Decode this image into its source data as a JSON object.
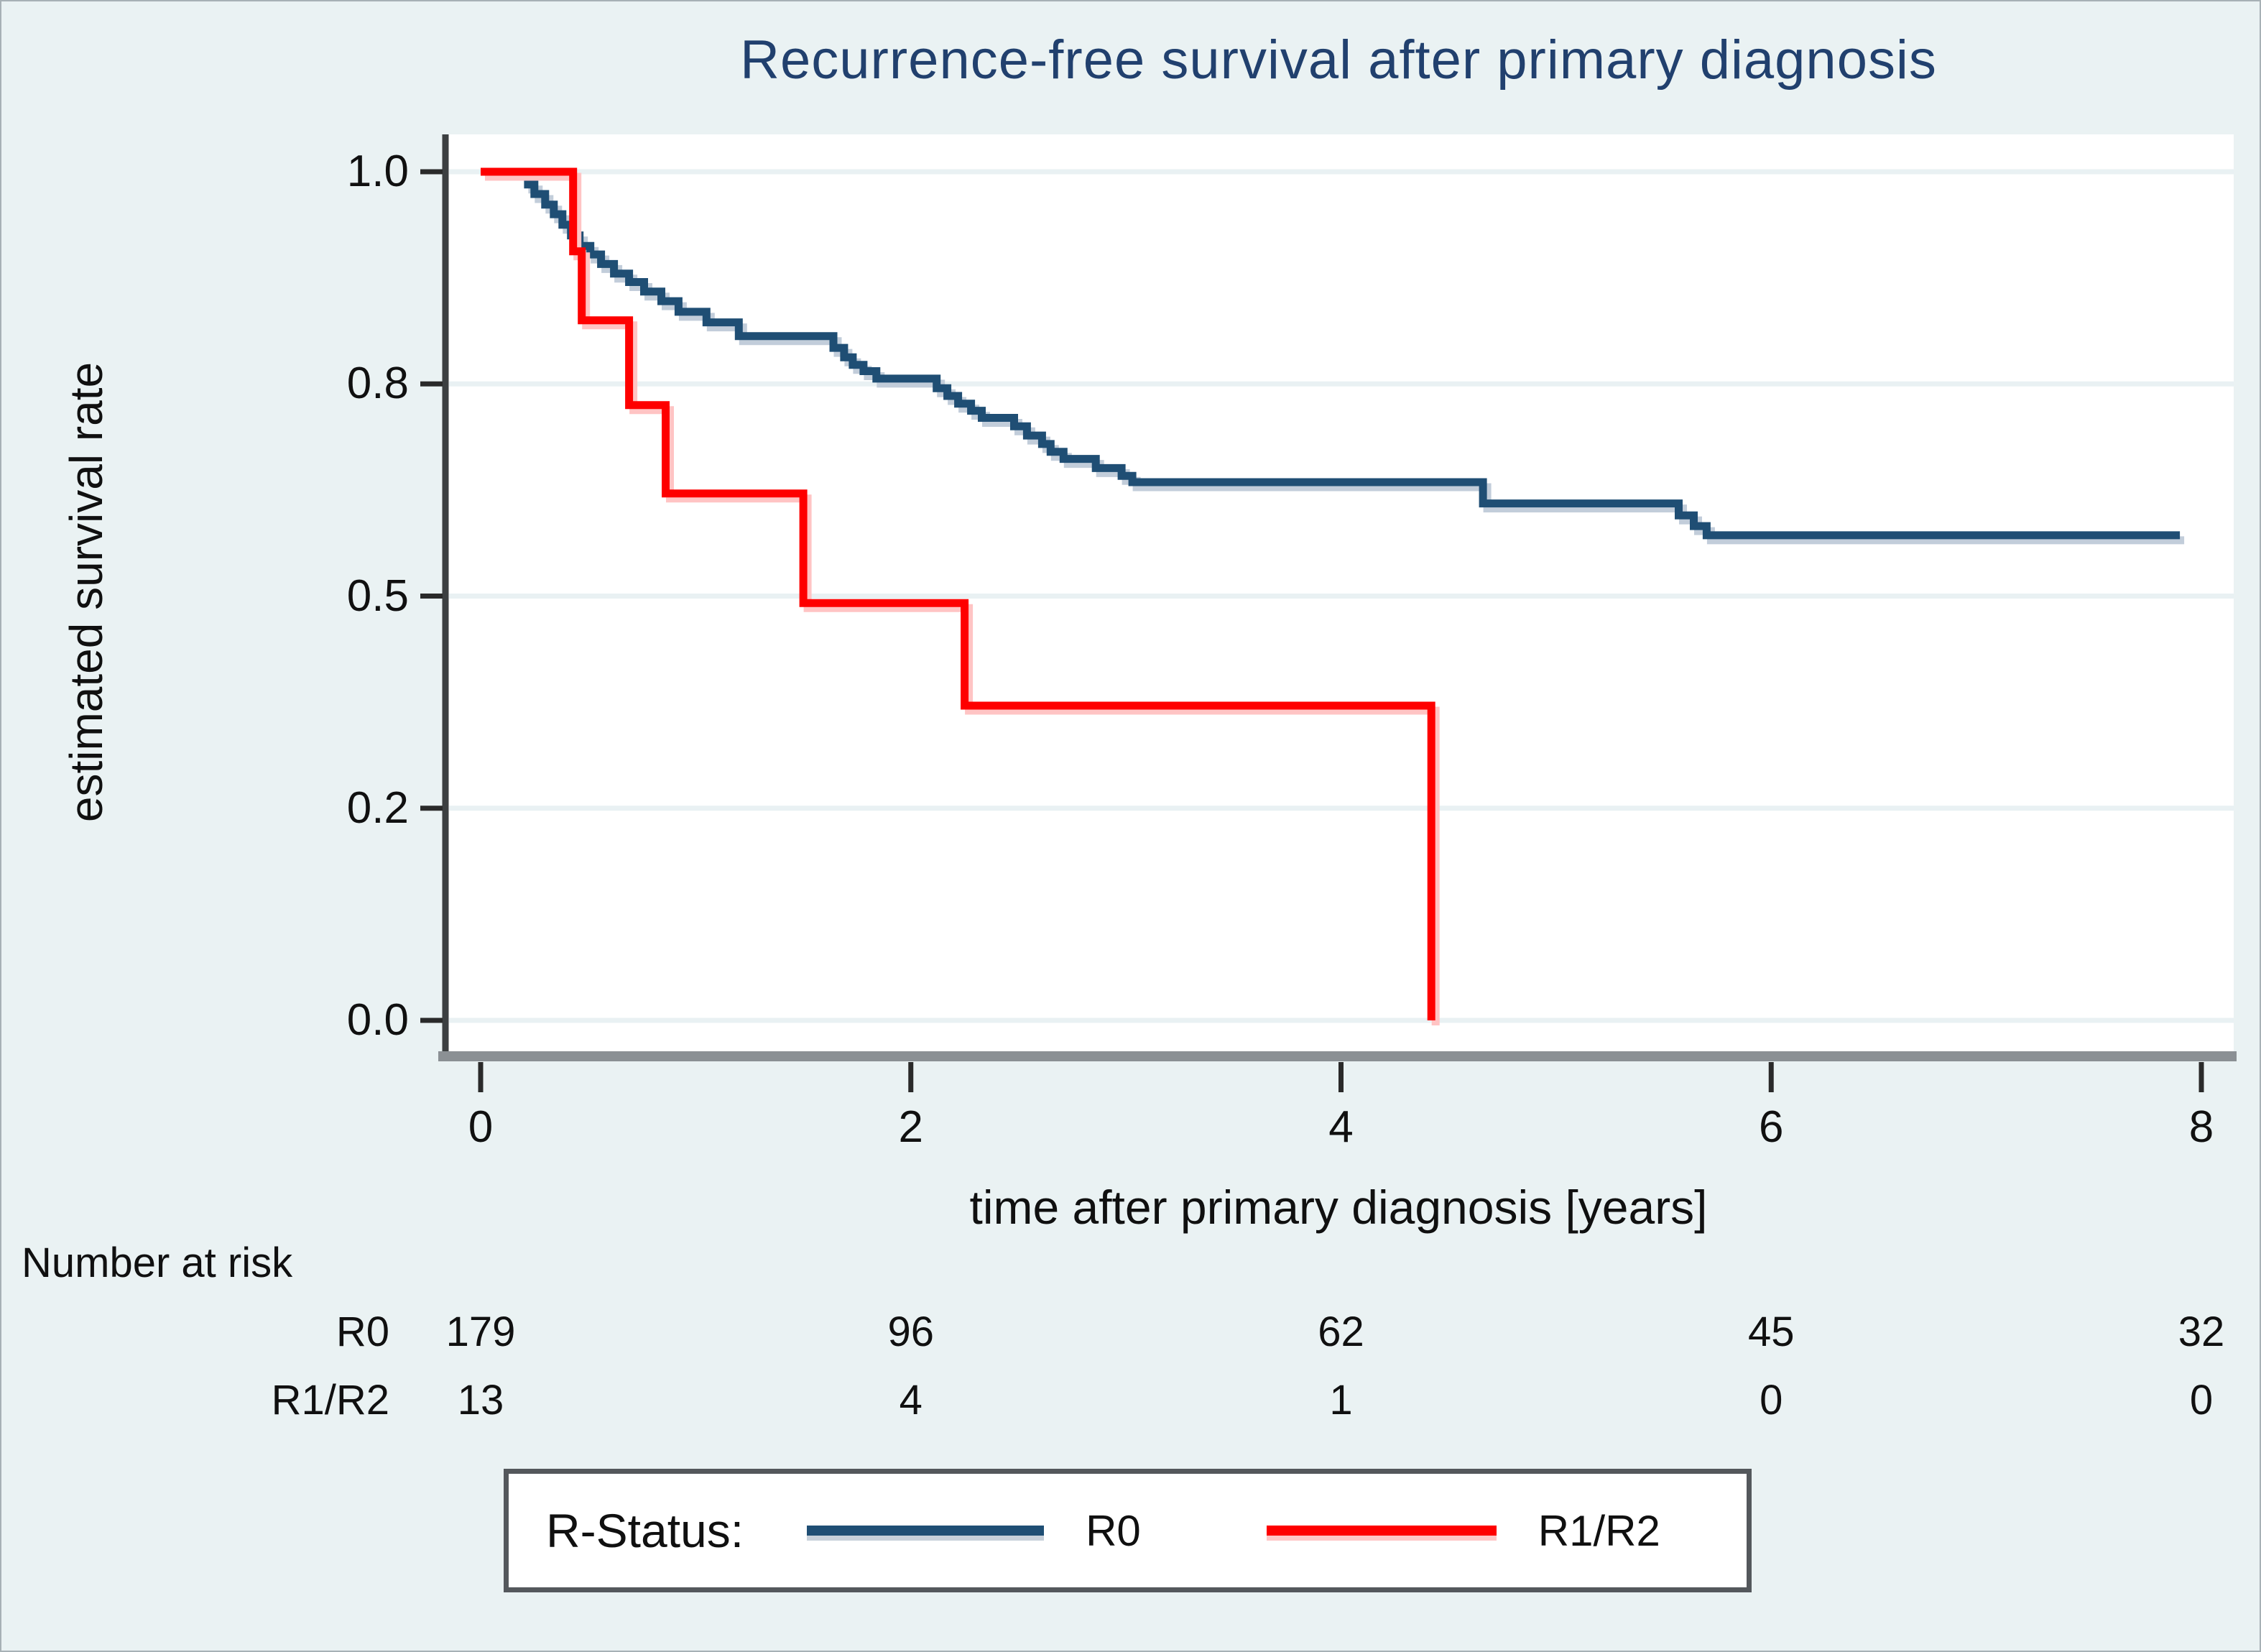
{
  "title": "Recurrence-free survival after primary diagnosis",
  "y_axis": {
    "label": "estimated survival rate",
    "ticks": [
      "1.0",
      "0.8",
      "0.5",
      "0.2",
      "0.0"
    ]
  },
  "x_axis": {
    "label": "time after primary diagnosis [years]",
    "ticks": [
      "0",
      "2",
      "4",
      "6",
      "8"
    ]
  },
  "risk_table": {
    "heading": "Number at risk",
    "rows": [
      {
        "label": "R0",
        "values": [
          "179",
          "96",
          "62",
          "45",
          "32"
        ]
      },
      {
        "label": "R1/R2",
        "values": [
          "13",
          "4",
          "1",
          "0",
          "0"
        ]
      }
    ]
  },
  "legend": {
    "title": "R-Status:",
    "entries": [
      {
        "label": "R0",
        "color": "#1f4e74"
      },
      {
        "label": "R1/R2",
        "color": "#fe0000"
      }
    ]
  },
  "colors": {
    "background": "#eaf2f3",
    "plot_background": "#ffffff",
    "grid": "#e9f1f3",
    "axis_line": "#3c3f41",
    "baseline": "#8b9094",
    "tick": "#2a2a2a",
    "title": "#21406e",
    "r0": "#1f4e74",
    "r0_shadow": "#c2cdda",
    "r1r2": "#fe0000",
    "r1r2_shadow": "#ffc4c4",
    "legend_border": "#54585c"
  },
  "chart_data": {
    "type": "line",
    "subtype": "kaplan-meier-step",
    "title": "Recurrence-free survival after primary diagnosis",
    "xlabel": "time after primary diagnosis [years]",
    "ylabel": "estimated survival rate",
    "xlim": [
      0,
      8
    ],
    "ylim": [
      0,
      1
    ],
    "x_ticks": [
      0,
      2,
      4,
      6,
      8
    ],
    "y_ticks": [
      0.0,
      0.2,
      0.5,
      0.8,
      1.0
    ],
    "y_ticks_equally_spaced": true,
    "grid": "horizontal-faint",
    "legend_position": "bottom",
    "series": [
      {
        "name": "R0",
        "color": "#1f4e74",
        "end_x": 7.9,
        "points": [
          [
            0,
            1.0
          ],
          [
            0.22,
            0.988
          ],
          [
            0.25,
            0.979
          ],
          [
            0.3,
            0.969
          ],
          [
            0.34,
            0.96
          ],
          [
            0.38,
            0.95
          ],
          [
            0.42,
            0.94
          ],
          [
            0.46,
            0.93
          ],
          [
            0.51,
            0.922
          ],
          [
            0.56,
            0.913
          ],
          [
            0.62,
            0.904
          ],
          [
            0.69,
            0.896
          ],
          [
            0.76,
            0.887
          ],
          [
            0.84,
            0.878
          ],
          [
            0.92,
            0.868
          ],
          [
            1.05,
            0.858
          ],
          [
            1.2,
            0.845
          ],
          [
            1.64,
            0.834
          ],
          [
            1.69,
            0.825
          ],
          [
            1.73,
            0.818
          ],
          [
            1.78,
            0.812
          ],
          [
            1.84,
            0.805
          ],
          [
            2.12,
            0.794
          ],
          [
            2.17,
            0.783
          ],
          [
            2.22,
            0.772
          ],
          [
            2.28,
            0.762
          ],
          [
            2.33,
            0.752
          ],
          [
            2.48,
            0.74
          ],
          [
            2.54,
            0.727
          ],
          [
            2.61,
            0.715
          ],
          [
            2.65,
            0.704
          ],
          [
            2.71,
            0.694
          ],
          [
            2.86,
            0.681
          ],
          [
            2.98,
            0.67
          ],
          [
            3.03,
            0.661
          ],
          [
            4.66,
            0.631
          ],
          [
            5.57,
            0.614
          ],
          [
            5.64,
            0.599
          ],
          [
            5.7,
            0.586
          ]
        ]
      },
      {
        "name": "R1/R2",
        "color": "#fe0000",
        "end_x": 4.42,
        "points": [
          [
            0,
            1.0
          ],
          [
            0.43,
            0.925
          ],
          [
            0.47,
            0.86
          ],
          [
            0.69,
            0.77
          ],
          [
            0.86,
            0.645
          ],
          [
            1.5,
            0.49
          ],
          [
            2.25,
            0.345
          ],
          [
            4.42,
            0.0
          ]
        ]
      }
    ],
    "number_at_risk": {
      "times": [
        0,
        2,
        4,
        6,
        8
      ],
      "R0": [
        179,
        96,
        62,
        45,
        32
      ],
      "R1/R2": [
        13,
        4,
        1,
        0,
        0
      ]
    }
  }
}
